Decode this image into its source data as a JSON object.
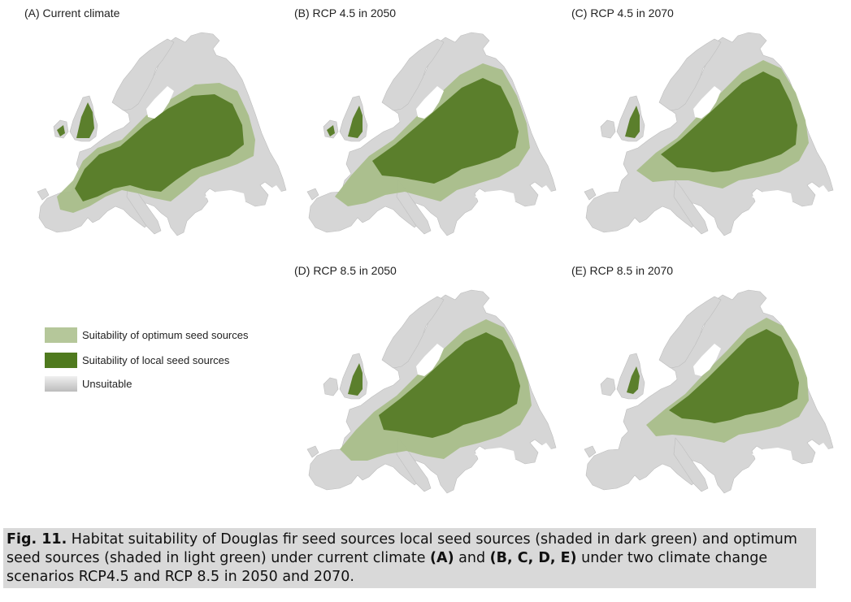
{
  "panels": [
    {
      "id": "A",
      "title": "(A) Current climate",
      "optimum_extent": "broad-central",
      "local_extent": "central-west"
    },
    {
      "id": "B",
      "title": "(B) RCP 4.5 in 2050",
      "optimum_extent": "broad-central",
      "local_extent": "north-east shift"
    },
    {
      "id": "C",
      "title": "(C) RCP 4.5 in 2070",
      "optimum_extent": "narrow",
      "local_extent": "north-east"
    },
    {
      "id": "D",
      "title": "(D) RCP 8.5 in 2050",
      "optimum_extent": "broad-central",
      "local_extent": "north-east"
    },
    {
      "id": "E",
      "title": "(E) RCP 8.5 in 2070",
      "optimum_extent": "narrow",
      "local_extent": "far north-east"
    }
  ],
  "legend": {
    "optimum": {
      "label": "Suitability of optimum seed sources",
      "color": "#b5c79a"
    },
    "local": {
      "label": "Suitability of local seed sources",
      "color": "#4f7a1e"
    },
    "unsuitable": {
      "label": "Unsuitable",
      "color": "#d4d4d4"
    }
  },
  "caption": {
    "label": "Fig. 11.",
    "part1": " Habitat suitability of Douglas fir seed sources local seed sources (shaded in dark green) and optimum seed sources (shaded in light green) under current climate ",
    "a": "(A)",
    "part2": " and ",
    "bcde": "(B, C, D, E)",
    "part3": " under two climate change scenarios RCP4.5 and RCP 8.5 in 2050 and 2070."
  },
  "colors": {
    "local": "#5b7f2c",
    "optimum": "#a9be8a",
    "land": "#d6d6d6",
    "sea": "#ffffff"
  }
}
